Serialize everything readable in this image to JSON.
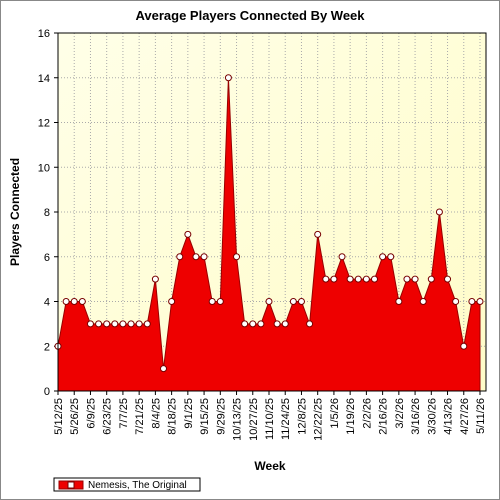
{
  "chart_data": {
    "type": "area",
    "title": "Average Players Connected By Week",
    "x_label": "Week",
    "y_label": "Players Connected",
    "categories": [
      "5/12/25",
      null,
      "5/26/25",
      null,
      "6/9/25",
      null,
      "6/23/25",
      null,
      "7/7/25",
      null,
      "7/21/25",
      null,
      "8/4/25",
      null,
      "8/18/25",
      null,
      "9/1/25",
      null,
      "9/15/25",
      null,
      "9/29/25",
      null,
      "10/13/25",
      null,
      "10/27/25",
      null,
      "11/10/25",
      null,
      "11/24/25",
      null,
      "12/8/25",
      null,
      "12/22/25",
      null,
      "1/5/26",
      null,
      "1/19/26",
      null,
      "2/2/26",
      null,
      "2/16/26",
      null,
      "3/2/26",
      null,
      "3/16/26",
      null,
      "3/30/26",
      null,
      "4/13/26",
      null,
      "4/27/26",
      null,
      "5/11/26"
    ],
    "series": [
      {
        "name": "Nemesis, The Original",
        "color": "#ee0000",
        "values": [
          2,
          4,
          4,
          4,
          3,
          3,
          3,
          3,
          3,
          3,
          3,
          3,
          5,
          1,
          4,
          6,
          7,
          6,
          6,
          4,
          4,
          14,
          6,
          3,
          3,
          3,
          4,
          3,
          3,
          4,
          4,
          3,
          7,
          5,
          5,
          6,
          5,
          5,
          5,
          5,
          6,
          6,
          4,
          5,
          5,
          4,
          5,
          8,
          5,
          4,
          2,
          4,
          4
        ]
      }
    ],
    "ylim": [
      0,
      16
    ],
    "yticks": [
      0,
      2,
      4,
      6,
      8,
      10,
      12,
      14,
      16
    ],
    "grid": true
  }
}
